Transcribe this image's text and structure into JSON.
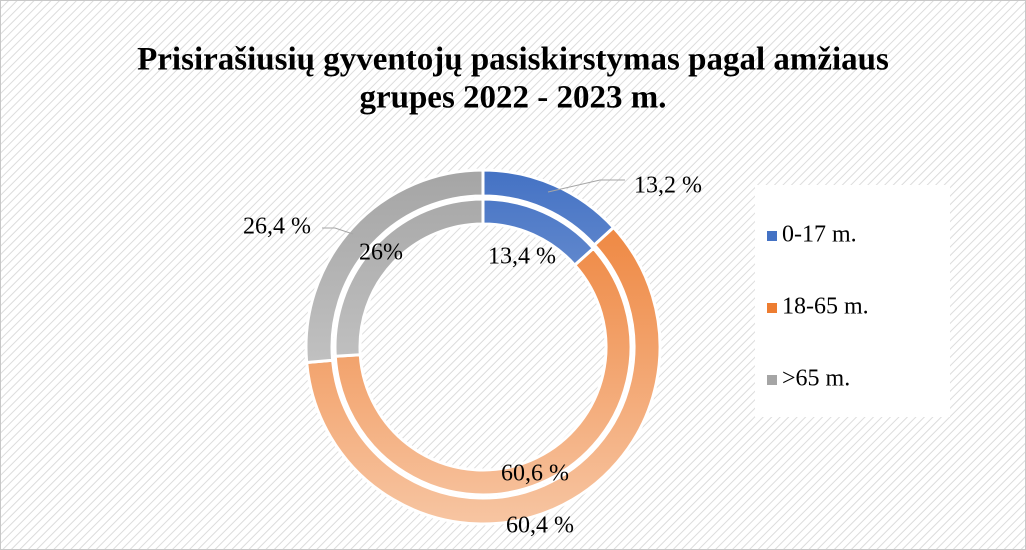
{
  "chart_data": {
    "type": "doughnut",
    "title": [
      "Prisirašiusių gyventojų pasiskirstymas pagal amžiaus",
      "grupes 2022 - 2023 m."
    ],
    "categories": [
      "0-17 m.",
      "18-65 m.",
      ">65 m."
    ],
    "colors": [
      "#4472c4",
      "#ed7d31",
      "#a5a5a5"
    ],
    "series": [
      {
        "values": [
          13.2,
          60.4,
          26.4
        ],
        "value_labels": [
          "13,2 %",
          "60,4 %",
          "26,4 %"
        ]
      },
      {
        "values": [
          13.4,
          60.6,
          26
        ],
        "value_labels": [
          "13,4 %",
          "60,6 %",
          "26%"
        ]
      }
    ],
    "legend": "right"
  }
}
